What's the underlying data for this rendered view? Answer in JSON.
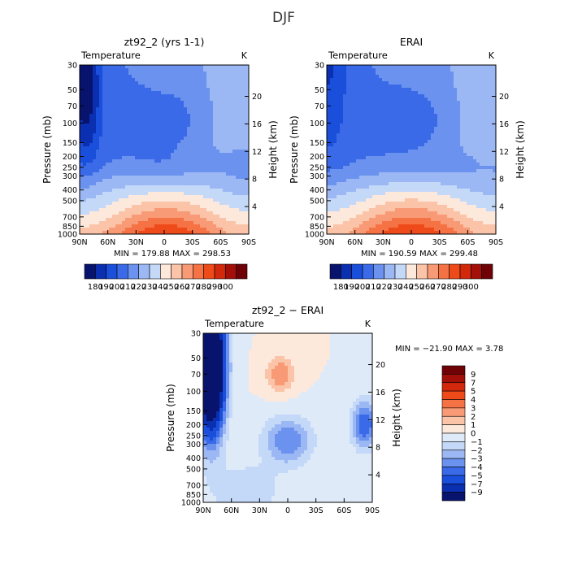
{
  "figure_title": "DJF",
  "colors": {
    "temperature_levels": [
      "#08136e",
      "#0a2fb0",
      "#1a4fdc",
      "#3a6ae8",
      "#6a92ee",
      "#9cb8f4",
      "#c4d8f8",
      "#fde8dc",
      "#fbc3a8",
      "#f89a75",
      "#f57245",
      "#ef4a1a",
      "#d2280c",
      "#a3100a",
      "#6e0206"
    ],
    "difference_levels": [
      "#08136e",
      "#0a2fb0",
      "#1a4fdc",
      "#3a6ae8",
      "#6a92ee",
      "#9cb8f4",
      "#c4d8f8",
      "#dfeaf8",
      "#fde8dc",
      "#fbc3a8",
      "#f89a75",
      "#f57245",
      "#ef4a1a",
      "#d2280c",
      "#a3100a",
      "#6e0206"
    ]
  },
  "chart_data": [
    {
      "type": "heatmap",
      "title": "zt92_2 (yrs 1-1)",
      "variable_label": "Temperature",
      "unit_label": "K",
      "x_ticks": [
        "90N",
        "60N",
        "30N",
        "0",
        "30S",
        "60S",
        "90S"
      ],
      "y_ticks": [
        "30",
        "50",
        "70",
        "100",
        "150",
        "200",
        "250",
        "300",
        "400",
        "500",
        "700",
        "850",
        "1000"
      ],
      "ylabel": "Pressure (mb)",
      "y2label": "Height (km)",
      "y2_ticks": [
        "20",
        "16",
        "12",
        "8",
        "4"
      ],
      "ylim_mb": [
        1000,
        30
      ],
      "x_range_deg": [
        90,
        -90
      ],
      "min_max_text": "MIN = 179.88   MAX = 298.53",
      "colorbar_labels": [
        "180",
        "190",
        "200",
        "210",
        "220",
        "230",
        "240",
        "250",
        "260",
        "270",
        "280",
        "290",
        "300"
      ],
      "colorbar_levels": [
        180,
        190,
        200,
        210,
        220,
        230,
        240,
        250,
        260,
        270,
        280,
        290,
        300
      ]
    },
    {
      "type": "heatmap",
      "title": "ERAI",
      "variable_label": "Temperature",
      "unit_label": "K",
      "x_ticks": [
        "90N",
        "60N",
        "30N",
        "0",
        "30S",
        "60S",
        "90S"
      ],
      "y_ticks": [
        "30",
        "50",
        "70",
        "100",
        "150",
        "200",
        "250",
        "300",
        "400",
        "500",
        "700",
        "850",
        "1000"
      ],
      "ylabel": "Pressure (mb)",
      "y2label": "Height (km)",
      "y2_ticks": [
        "20",
        "16",
        "12",
        "8",
        "4"
      ],
      "ylim_mb": [
        1000,
        30
      ],
      "x_range_deg": [
        90,
        -90
      ],
      "min_max_text": "MIN = 190.59   MAX = 299.48",
      "colorbar_labels": [
        "180",
        "190",
        "200",
        "210",
        "220",
        "230",
        "240",
        "250",
        "260",
        "270",
        "280",
        "290",
        "300"
      ],
      "colorbar_levels": [
        180,
        190,
        200,
        210,
        220,
        230,
        240,
        250,
        260,
        270,
        280,
        290,
        300
      ]
    },
    {
      "type": "heatmap",
      "title": "zt92_2 − ERAI",
      "variable_label": "Temperature",
      "unit_label": "K",
      "x_ticks": [
        "90N",
        "60N",
        "30N",
        "0",
        "30S",
        "60S",
        "90S"
      ],
      "y_ticks": [
        "30",
        "50",
        "70",
        "100",
        "150",
        "200",
        "250",
        "300",
        "400",
        "500",
        "700",
        "850",
        "1000"
      ],
      "ylabel": "Pressure (mb)",
      "y2label": "Height (km)",
      "y2_ticks": [
        "20",
        "16",
        "12",
        "8",
        "4"
      ],
      "ylim_mb": [
        1000,
        30
      ],
      "x_range_deg": [
        90,
        -90
      ],
      "min_max_text": "MIN = −21.90   MAX =   3.78",
      "colorbar_labels": [
        "9",
        "7",
        "5",
        "4",
        "3",
        "2",
        "1",
        "0",
        "−1",
        "−2",
        "−3",
        "−4",
        "−5",
        "−7",
        "−9"
      ],
      "colorbar_levels": [
        -9,
        -7,
        -5,
        -4,
        -3,
        -2,
        -1,
        0,
        1,
        2,
        3,
        4,
        5,
        7,
        9
      ]
    }
  ]
}
